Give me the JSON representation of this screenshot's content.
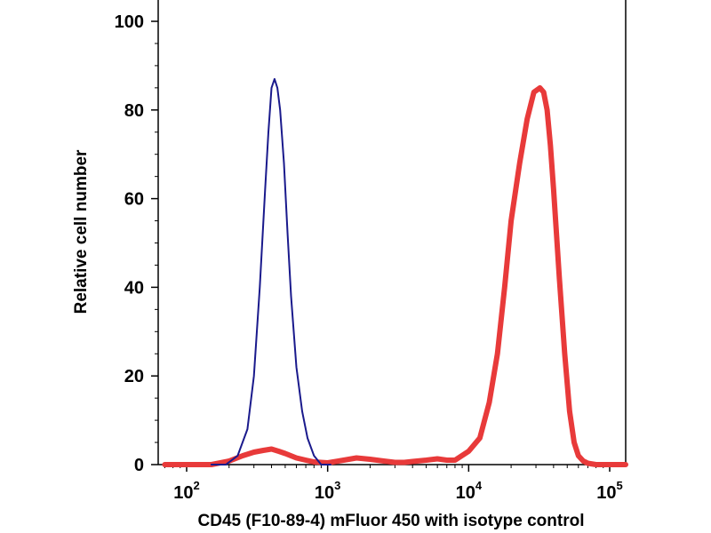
{
  "chart_data": {
    "type": "line",
    "title": "",
    "xlabel": "CD45 (F10-89-4) mFluor 450 with isotype control",
    "ylabel": "Relative cell number",
    "x_scale": "log",
    "xlim": [
      70,
      160000
    ],
    "ylim": [
      0,
      105
    ],
    "x_ticks": [
      {
        "value": 100,
        "base": "10",
        "exp": "2"
      },
      {
        "value": 1000,
        "base": "10",
        "exp": "3"
      },
      {
        "value": 10000,
        "base": "10",
        "exp": "4"
      },
      {
        "value": 100000,
        "base": "10",
        "exp": "5"
      }
    ],
    "y_ticks": [
      0,
      20,
      40,
      60,
      80,
      100
    ],
    "grid": false,
    "legend": "none",
    "series": [
      {
        "color": "#1a1a8c",
        "line": "thin",
        "x": [
          150,
          190,
          230,
          270,
          300,
          330,
          360,
          380,
          400,
          420,
          440,
          460,
          490,
          520,
          550,
          600,
          660,
          720,
          800,
          900,
          1050
        ],
        "y": [
          0,
          0,
          2,
          8,
          20,
          40,
          62,
          75,
          85,
          87,
          85,
          80,
          68,
          52,
          38,
          22,
          12,
          6,
          2,
          0,
          0
        ]
      },
      {
        "color": "#e83a3a",
        "line": "thick",
        "x": [
          70,
          150,
          200,
          250,
          300,
          350,
          400,
          450,
          500,
          600,
          700,
          800,
          1000,
          1300,
          1600,
          2000,
          2500,
          3000,
          3500,
          4000,
          5000,
          6000,
          7000,
          8000,
          10000,
          12000,
          14000,
          16000,
          18000,
          20000,
          23000,
          26000,
          29000,
          32000,
          34000,
          36000,
          38000,
          40000,
          44000,
          48000,
          52000,
          56000,
          60000,
          65000,
          70000,
          80000,
          100000,
          160000
        ],
        "y": [
          0,
          0,
          0.8,
          2,
          2.8,
          3.2,
          3.5,
          3,
          2.5,
          1.5,
          1,
          0.6,
          0.4,
          1,
          1.5,
          1.2,
          0.8,
          0.5,
          0.5,
          0.7,
          1,
          1.3,
          1,
          1,
          3,
          6,
          14,
          25,
          40,
          55,
          68,
          78,
          84,
          85,
          84,
          80,
          72,
          62,
          42,
          25,
          12,
          5,
          2,
          0.8,
          0.3,
          0,
          0,
          0
        ]
      }
    ]
  }
}
